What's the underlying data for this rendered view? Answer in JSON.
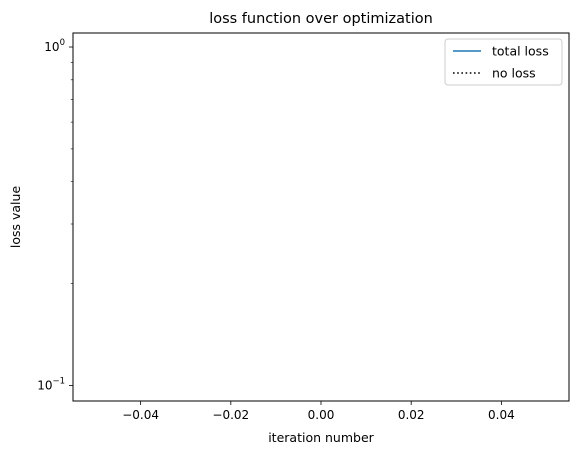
{
  "chart_data": {
    "type": "line",
    "title": "loss function over optimization",
    "xlabel": "iteration number",
    "ylabel": "loss value",
    "xlim": [
      -0.055,
      0.055
    ],
    "ylim": [
      0.09,
      1.1
    ],
    "yscale": "log",
    "grid": false,
    "legend_position": "top-right",
    "x_ticks": [
      {
        "value": -0.04,
        "label": "−0.04"
      },
      {
        "value": -0.02,
        "label": "−0.02"
      },
      {
        "value": 0.0,
        "label": "0.00"
      },
      {
        "value": 0.02,
        "label": "0.02"
      },
      {
        "value": 0.04,
        "label": "0.04"
      }
    ],
    "y_ticks": [
      {
        "value": 1,
        "base": "10",
        "exp": "0"
      },
      {
        "value": 0.1,
        "base": "10",
        "exp": "−1"
      }
    ],
    "y_minor_ticks": [
      0.2,
      0.3,
      0.4,
      0.5,
      0.6,
      0.7,
      0.8,
      0.9
    ],
    "series": [
      {
        "name": "total loss",
        "color": "#1f77b4",
        "style": "solid",
        "x": [],
        "y": []
      },
      {
        "name": "no loss",
        "color": "#000000",
        "style": "dotted",
        "x": [],
        "y": []
      }
    ]
  }
}
